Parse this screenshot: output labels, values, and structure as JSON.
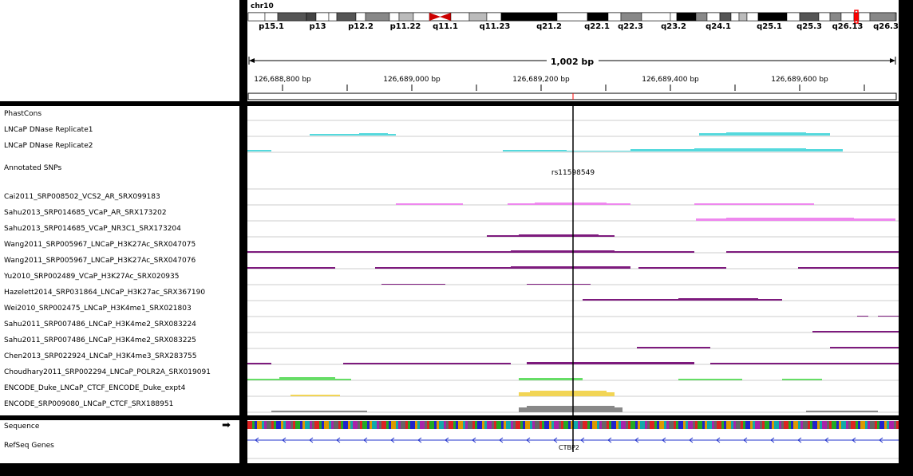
{
  "chromosome": {
    "name": "chr10",
    "bands": [
      "p15.1",
      "p13",
      "p12.2",
      "p11.22",
      "q11.1",
      "q11.23",
      "q21.2",
      "q22.1",
      "q22.3",
      "q23.2",
      "q24.1",
      "q25.1",
      "q25.3",
      "q26.13",
      "q26.3"
    ]
  },
  "ruler": {
    "span": "1,002 bp",
    "ticks": [
      "126,688,800 bp",
      "126,689,000 bp",
      "126,689,200 bp",
      "126,689,400 bp",
      "126,689,600 bp"
    ]
  },
  "tracks": [
    {
      "name": "PhastCons"
    },
    {
      "name": "LNCaP DNase Replicate1",
      "color": "#55d9dd"
    },
    {
      "name": "LNCaP DNase Replicate2",
      "color": "#55d9dd"
    },
    {
      "name": "Annotated SNPs",
      "feature": "rs11598549"
    },
    {
      "name": "Cai2011_SRP008502_VCS2_AR_SRX099183"
    },
    {
      "name": "Sahu2013_SRP014685_VCaP_AR_SRX173202",
      "color": "#ee88ee"
    },
    {
      "name": "Sahu2013_SRP014685_VCaP_NR3C1_SRX173204",
      "color": "#ee88ee"
    },
    {
      "name": "Wang2011_SRP005967_LNCaP_H3K27Ac_SRX047075",
      "color": "#7d1a7d"
    },
    {
      "name": "Wang2011_SRP005967_LNCaP_H3K27Ac_SRX047076",
      "color": "#7d1a7d"
    },
    {
      "name": "Yu2010_SRP002489_VCaP_H3K27Ac_SRX020935",
      "color": "#7d1a7d"
    },
    {
      "name": "Hazelett2014_SRP031864_LNCaP_H3K27ac_SRX367190",
      "color": "#7d1a7d"
    },
    {
      "name": "Wei2010_SRP002475_LNCaP_H3K4me1_SRX021803",
      "color": "#7d1a7d"
    },
    {
      "name": "Sahu2011_SRP007486_LNCaP_H3K4me2_SRX083224",
      "color": "#7d1a7d"
    },
    {
      "name": "Sahu2011_SRP007486_LNCaP_H3K4me2_SRX083225",
      "color": "#7d1a7d"
    },
    {
      "name": "Chen2013_SRP022924_LNCaP_H3K4me3_SRX283755",
      "color": "#7d1a7d"
    },
    {
      "name": "Choudhary2011_SRP002294_LNCaP_POLR2A_SRX019091",
      "color": "#7d1a7d"
    },
    {
      "name": "ENCODE_Duke_LNCaP_CTCF_ENCODE_Duke_expt4",
      "color": "#66dd66"
    },
    {
      "name": "ENCODE_SRP009080_LNCaP_CTCF_SRX188951",
      "color": "#f2d555"
    }
  ],
  "bottom": {
    "sequence_label": "Sequence",
    "sequence_arrow": "➡",
    "refseq_label": "RefSeq Genes",
    "gene_name": "CTBP2"
  }
}
